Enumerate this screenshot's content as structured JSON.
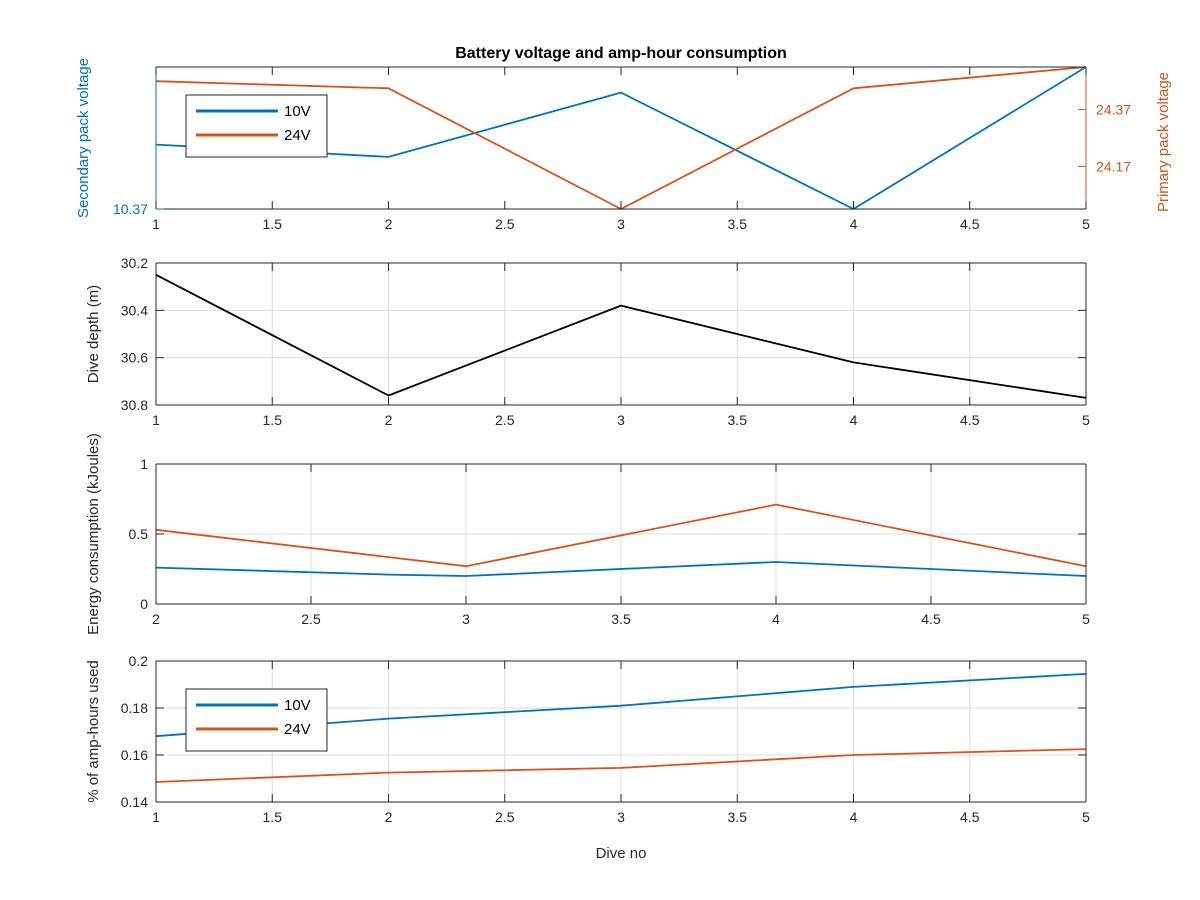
{
  "figure": {
    "title": "Battery voltage and amp-hour consumption",
    "xlabel": "Dive no"
  },
  "chart_data": [
    {
      "type": "line",
      "title": "Battery voltage and amp-hour consumption",
      "xlabel": "",
      "ylabel_left": "Secondary pack voltage",
      "ylabel_right": "Primary pack voltage",
      "xlim": [
        1,
        5
      ],
      "xticks": [
        "1",
        "1.5",
        "2",
        "2.5",
        "3",
        "3.5",
        "4",
        "4.5",
        "5"
      ],
      "left_yticks": [
        {
          "value": 10.37,
          "label": "10.37"
        }
      ],
      "right_yticks": [
        {
          "value": 24.17,
          "label": "24.17"
        },
        {
          "value": 24.37,
          "label": "24.37"
        }
      ],
      "left_ylim": [
        10.37,
        10.52
      ],
      "right_ylim": [
        24.02,
        24.52
      ],
      "grid": false,
      "legend": "top-left",
      "series": [
        {
          "name": "10V",
          "axis": "left",
          "color": "#0072BD",
          "x": [
            1,
            2,
            3,
            4,
            5
          ],
          "values": [
            10.438,
            10.425,
            10.493,
            10.37,
            10.52
          ]
        },
        {
          "name": "24V",
          "axis": "right",
          "color": "#D95319",
          "x": [
            1,
            2,
            3,
            4,
            5
          ],
          "values": [
            24.47,
            24.445,
            24.02,
            24.445,
            24.52
          ]
        }
      ]
    },
    {
      "type": "line",
      "ylabel": "Dive depth (m)",
      "xlim": [
        1,
        5
      ],
      "ylim": [
        30.2,
        30.8
      ],
      "yreverse": true,
      "xticks": [
        "1",
        "1.5",
        "2",
        "2.5",
        "3",
        "3.5",
        "4",
        "4.5",
        "5"
      ],
      "yticks": [
        {
          "value": 30.2,
          "label": "30.2"
        },
        {
          "value": 30.4,
          "label": "30.4"
        },
        {
          "value": 30.6,
          "label": "30.6"
        },
        {
          "value": 30.8,
          "label": "30.8"
        }
      ],
      "grid": true,
      "series": [
        {
          "color": "#000000",
          "x": [
            1,
            2,
            3,
            4,
            5
          ],
          "values": [
            30.25,
            30.76,
            30.38,
            30.62,
            30.77
          ]
        }
      ]
    },
    {
      "type": "line",
      "ylabel": "Energy consumption (kJoules)",
      "xlim": [
        2,
        5
      ],
      "ylim": [
        0,
        1
      ],
      "xticks": [
        "2",
        "2.5",
        "3",
        "3.5",
        "4",
        "4.5",
        "5"
      ],
      "yticks": [
        {
          "value": 0,
          "label": "0"
        },
        {
          "value": 0.5,
          "label": "0.5"
        },
        {
          "value": 1,
          "label": "1"
        }
      ],
      "grid": true,
      "series": [
        {
          "color": "#0072BD",
          "x": [
            2,
            2.75,
            3,
            4,
            5
          ],
          "values": [
            0.26,
            0.21,
            0.2,
            0.3,
            0.2
          ]
        },
        {
          "color": "#D95319",
          "x": [
            2,
            3,
            4,
            5
          ],
          "values": [
            0.53,
            0.27,
            0.71,
            0.27
          ]
        }
      ]
    },
    {
      "type": "line",
      "ylabel": "% of amp-hours used",
      "xlabel": "Dive no",
      "xlim": [
        1,
        5
      ],
      "ylim": [
        0.14,
        0.2
      ],
      "xticks": [
        "1",
        "1.5",
        "2",
        "2.5",
        "3",
        "3.5",
        "4",
        "4.5",
        "5"
      ],
      "yticks": [
        {
          "value": 0.14,
          "label": "0.14"
        },
        {
          "value": 0.16,
          "label": "0.16"
        },
        {
          "value": 0.18,
          "label": "0.18"
        },
        {
          "value": 0.2,
          "label": "0.2"
        }
      ],
      "grid": true,
      "legend": "top-left",
      "series": [
        {
          "name": "10V",
          "color": "#0072BD",
          "x": [
            1,
            2,
            3,
            4,
            5
          ],
          "values": [
            0.168,
            0.1755,
            0.181,
            0.189,
            0.1945
          ]
        },
        {
          "name": "24V",
          "color": "#D95319",
          "x": [
            1,
            2,
            3,
            4,
            5
          ],
          "values": [
            0.1485,
            0.1525,
            0.1545,
            0.16,
            0.1625
          ]
        }
      ]
    }
  ]
}
